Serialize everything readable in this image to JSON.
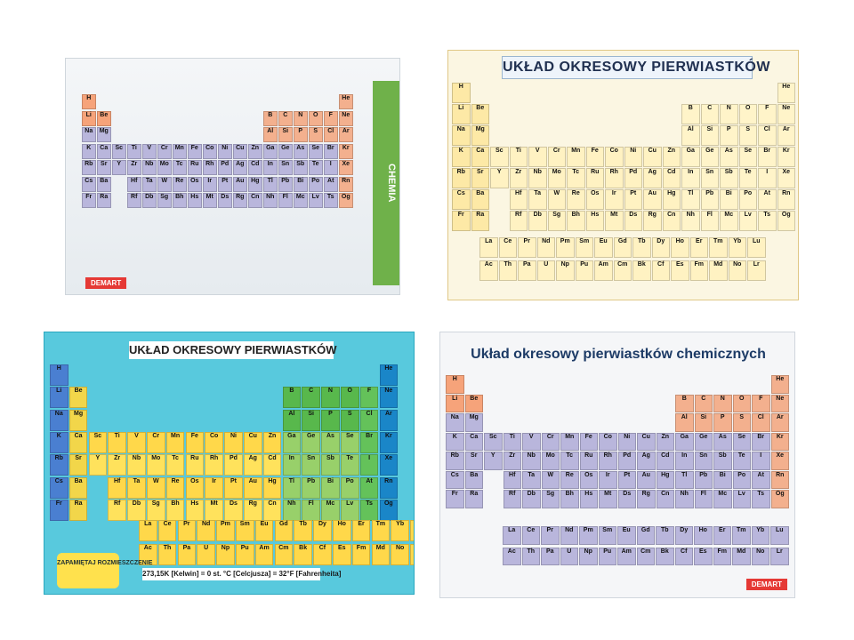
{
  "posters": {
    "top_left": {
      "brand": "DEMART",
      "side_title": "CHEMIA",
      "color": "#b8b6d8"
    },
    "top_right": {
      "title": "UKŁAD OKRESOWY PIERWIASTKÓW",
      "color": "#fff2c2"
    },
    "bottom_left": {
      "title": "UKŁAD OKRESOWY PIERWIASTKÓW",
      "footer": "273,15K [Kelwin] = 0 st. °C [Celcjusza] = 32°F [Fahrenheita]",
      "sticker": "ZAPAMIĘTAJ ROZMIESZCZENIE",
      "color": "#58c9dd"
    },
    "bottom_right": {
      "title": "Układ okresowy pierwiastków chemicznych",
      "brand": "DEMART",
      "color": "#b9b6dc"
    }
  },
  "elements": [
    {
      "s": "H",
      "r": 1,
      "c": 1
    },
    {
      "s": "He",
      "r": 1,
      "c": 18
    },
    {
      "s": "Li",
      "r": 2,
      "c": 1
    },
    {
      "s": "Be",
      "r": 2,
      "c": 2
    },
    {
      "s": "B",
      "r": 2,
      "c": 13
    },
    {
      "s": "C",
      "r": 2,
      "c": 14
    },
    {
      "s": "N",
      "r": 2,
      "c": 15
    },
    {
      "s": "O",
      "r": 2,
      "c": 16
    },
    {
      "s": "F",
      "r": 2,
      "c": 17
    },
    {
      "s": "Ne",
      "r": 2,
      "c": 18
    },
    {
      "s": "Na",
      "r": 3,
      "c": 1
    },
    {
      "s": "Mg",
      "r": 3,
      "c": 2
    },
    {
      "s": "Al",
      "r": 3,
      "c": 13
    },
    {
      "s": "Si",
      "r": 3,
      "c": 14
    },
    {
      "s": "P",
      "r": 3,
      "c": 15
    },
    {
      "s": "S",
      "r": 3,
      "c": 16
    },
    {
      "s": "Cl",
      "r": 3,
      "c": 17
    },
    {
      "s": "Ar",
      "r": 3,
      "c": 18
    },
    {
      "s": "K",
      "r": 4,
      "c": 1
    },
    {
      "s": "Ca",
      "r": 4,
      "c": 2
    },
    {
      "s": "Sc",
      "r": 4,
      "c": 3
    },
    {
      "s": "Ti",
      "r": 4,
      "c": 4
    },
    {
      "s": "V",
      "r": 4,
      "c": 5
    },
    {
      "s": "Cr",
      "r": 4,
      "c": 6
    },
    {
      "s": "Mn",
      "r": 4,
      "c": 7
    },
    {
      "s": "Fe",
      "r": 4,
      "c": 8
    },
    {
      "s": "Co",
      "r": 4,
      "c": 9
    },
    {
      "s": "Ni",
      "r": 4,
      "c": 10
    },
    {
      "s": "Cu",
      "r": 4,
      "c": 11
    },
    {
      "s": "Zn",
      "r": 4,
      "c": 12
    },
    {
      "s": "Ga",
      "r": 4,
      "c": 13
    },
    {
      "s": "Ge",
      "r": 4,
      "c": 14
    },
    {
      "s": "As",
      "r": 4,
      "c": 15
    },
    {
      "s": "Se",
      "r": 4,
      "c": 16
    },
    {
      "s": "Br",
      "r": 4,
      "c": 17
    },
    {
      "s": "Kr",
      "r": 4,
      "c": 18
    },
    {
      "s": "Rb",
      "r": 5,
      "c": 1
    },
    {
      "s": "Sr",
      "r": 5,
      "c": 2
    },
    {
      "s": "Y",
      "r": 5,
      "c": 3
    },
    {
      "s": "Zr",
      "r": 5,
      "c": 4
    },
    {
      "s": "Nb",
      "r": 5,
      "c": 5
    },
    {
      "s": "Mo",
      "r": 5,
      "c": 6
    },
    {
      "s": "Tc",
      "r": 5,
      "c": 7
    },
    {
      "s": "Ru",
      "r": 5,
      "c": 8
    },
    {
      "s": "Rh",
      "r": 5,
      "c": 9
    },
    {
      "s": "Pd",
      "r": 5,
      "c": 10
    },
    {
      "s": "Ag",
      "r": 5,
      "c": 11
    },
    {
      "s": "Cd",
      "r": 5,
      "c": 12
    },
    {
      "s": "In",
      "r": 5,
      "c": 13
    },
    {
      "s": "Sn",
      "r": 5,
      "c": 14
    },
    {
      "s": "Sb",
      "r": 5,
      "c": 15
    },
    {
      "s": "Te",
      "r": 5,
      "c": 16
    },
    {
      "s": "I",
      "r": 5,
      "c": 17
    },
    {
      "s": "Xe",
      "r": 5,
      "c": 18
    },
    {
      "s": "Cs",
      "r": 6,
      "c": 1
    },
    {
      "s": "Ba",
      "r": 6,
      "c": 2
    },
    {
      "s": "Hf",
      "r": 6,
      "c": 4
    },
    {
      "s": "Ta",
      "r": 6,
      "c": 5
    },
    {
      "s": "W",
      "r": 6,
      "c": 6
    },
    {
      "s": "Re",
      "r": 6,
      "c": 7
    },
    {
      "s": "Os",
      "r": 6,
      "c": 8
    },
    {
      "s": "Ir",
      "r": 6,
      "c": 9
    },
    {
      "s": "Pt",
      "r": 6,
      "c": 10
    },
    {
      "s": "Au",
      "r": 6,
      "c": 11
    },
    {
      "s": "Hg",
      "r": 6,
      "c": 12
    },
    {
      "s": "Tl",
      "r": 6,
      "c": 13
    },
    {
      "s": "Pb",
      "r": 6,
      "c": 14
    },
    {
      "s": "Bi",
      "r": 6,
      "c": 15
    },
    {
      "s": "Po",
      "r": 6,
      "c": 16
    },
    {
      "s": "At",
      "r": 6,
      "c": 17
    },
    {
      "s": "Rn",
      "r": 6,
      "c": 18
    },
    {
      "s": "Fr",
      "r": 7,
      "c": 1
    },
    {
      "s": "Ra",
      "r": 7,
      "c": 2
    },
    {
      "s": "Rf",
      "r": 7,
      "c": 4
    },
    {
      "s": "Db",
      "r": 7,
      "c": 5
    },
    {
      "s": "Sg",
      "r": 7,
      "c": 6
    },
    {
      "s": "Bh",
      "r": 7,
      "c": 7
    },
    {
      "s": "Hs",
      "r": 7,
      "c": 8
    },
    {
      "s": "Mt",
      "r": 7,
      "c": 9
    },
    {
      "s": "Ds",
      "r": 7,
      "c": 10
    },
    {
      "s": "Rg",
      "r": 7,
      "c": 11
    },
    {
      "s": "Cn",
      "r": 7,
      "c": 12
    },
    {
      "s": "Nh",
      "r": 7,
      "c": 13
    },
    {
      "s": "Fl",
      "r": 7,
      "c": 14
    },
    {
      "s": "Mc",
      "r": 7,
      "c": 15
    },
    {
      "s": "Lv",
      "r": 7,
      "c": 16
    },
    {
      "s": "Ts",
      "r": 7,
      "c": 17
    },
    {
      "s": "Og",
      "r": 7,
      "c": 18
    }
  ],
  "f_block": {
    "lanthanides": [
      "La",
      "Ce",
      "Pr",
      "Nd",
      "Pm",
      "Sm",
      "Eu",
      "Gd",
      "Tb",
      "Dy",
      "Ho",
      "Er",
      "Tm",
      "Yb",
      "Lu"
    ],
    "actinides": [
      "Ac",
      "Th",
      "Pa",
      "U",
      "Np",
      "Pu",
      "Am",
      "Cm",
      "Bk",
      "Cf",
      "Es",
      "Fm",
      "Md",
      "No",
      "Lr"
    ]
  }
}
